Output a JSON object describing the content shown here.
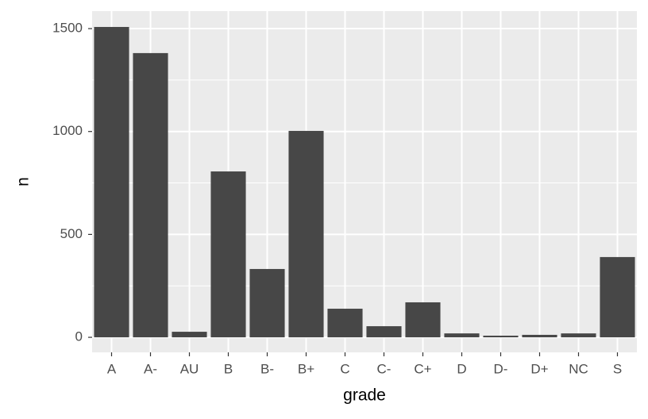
{
  "chart_data": {
    "type": "bar",
    "x_label": "grade",
    "y_label": "n",
    "categories": [
      "A",
      "A-",
      "AU",
      "B",
      "B-",
      "B+",
      "C",
      "C-",
      "C+",
      "D",
      "D-",
      "D+",
      "NC",
      "S"
    ],
    "values": [
      1508,
      1381,
      27,
      806,
      332,
      1003,
      139,
      54,
      170,
      19,
      8,
      12,
      19,
      390
    ],
    "color": "#474747",
    "ylim": [
      -73,
      1585
    ],
    "yticks": [
      0,
      500,
      1000,
      1500
    ],
    "grid": true
  }
}
